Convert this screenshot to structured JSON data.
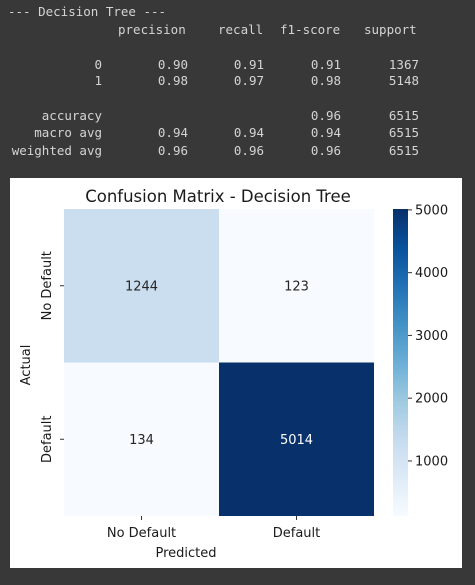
{
  "report": {
    "header_line": "--- Decision Tree ---",
    "columns": [
      "precision",
      "recall",
      "f1-score",
      "support"
    ],
    "rows": [
      {
        "label": "0",
        "precision": "0.90",
        "recall": "0.91",
        "f1": "0.91",
        "support": "1367"
      },
      {
        "label": "1",
        "precision": "0.98",
        "recall": "0.97",
        "f1": "0.98",
        "support": "5148"
      }
    ],
    "summary": [
      {
        "label": "accuracy",
        "precision": "",
        "recall": "",
        "f1": "0.96",
        "support": "6515"
      },
      {
        "label": "macro avg",
        "precision": "0.94",
        "recall": "0.94",
        "f1": "0.94",
        "support": "6515"
      },
      {
        "label": "weighted avg",
        "precision": "0.96",
        "recall": "0.96",
        "f1": "0.96",
        "support": "6515"
      }
    ]
  },
  "chart_data": {
    "type": "heatmap",
    "title": "Confusion Matrix - Decision Tree",
    "xlabel": "Predicted",
    "ylabel": "Actual",
    "x_categories": [
      "No Default",
      "Default"
    ],
    "y_categories": [
      "No Default",
      "Default"
    ],
    "values": [
      [
        1244,
        123
      ],
      [
        134,
        5014
      ]
    ],
    "colormap": "Blues",
    "color_range": [
      123,
      5014
    ],
    "colorbar_ticks": [
      1000,
      2000,
      3000,
      4000,
      5000
    ],
    "grid": false
  }
}
